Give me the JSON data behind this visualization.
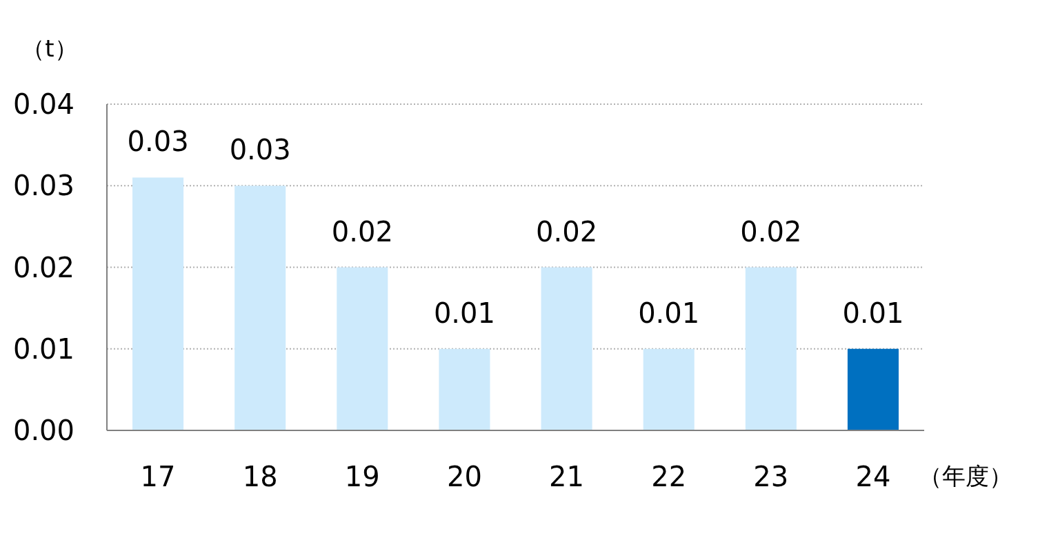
{
  "chart_data": {
    "type": "bar",
    "ylabel": "（t）",
    "xlabel": "（年度）",
    "categories": [
      "17",
      "18",
      "19",
      "20",
      "21",
      "22",
      "23",
      "24"
    ],
    "values": [
      0.031,
      0.03,
      0.02,
      0.01,
      0.02,
      0.01,
      0.02,
      0.01
    ],
    "colors": [
      "#cdeafc",
      "#cdeafc",
      "#cdeafc",
      "#cdeafc",
      "#cdeafc",
      "#cdeafc",
      "#cdeafc",
      "#0070c0"
    ],
    "value_labels": [
      "0.03",
      "0.03",
      "0.02",
      "0.01",
      "0.02",
      "0.01",
      "0.02",
      "0.01"
    ],
    "ylim": [
      0,
      0.04
    ],
    "yticks": [
      {
        "value": 0,
        "label": "0.00"
      },
      {
        "value": 0.01,
        "label": "0.01"
      },
      {
        "value": 0.02,
        "label": "0.02"
      },
      {
        "value": 0.03,
        "label": "0.03"
      },
      {
        "value": 0.04,
        "label": "0.04"
      }
    ],
    "grid": "y"
  }
}
